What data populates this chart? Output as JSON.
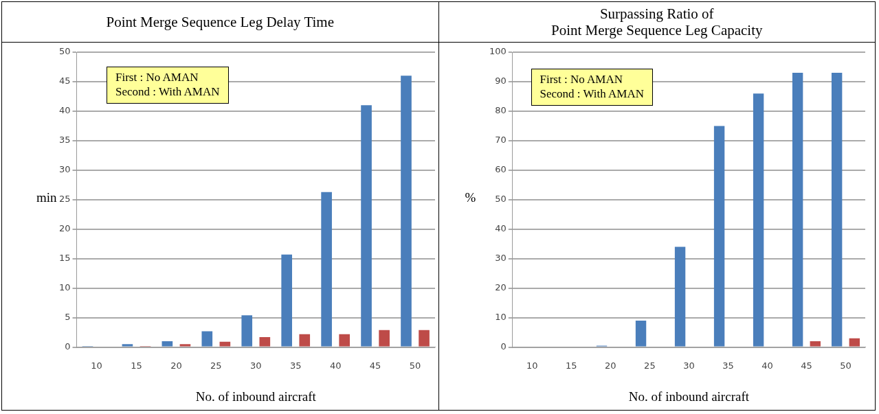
{
  "chart_data": [
    {
      "type": "bar",
      "title": "Point Merge Sequence Leg Delay Time",
      "xlabel": "No. of inbound aircraft",
      "ylabel": "min",
      "categories": [
        "10",
        "15",
        "20",
        "25",
        "30",
        "35",
        "40",
        "45",
        "50"
      ],
      "series": [
        {
          "color": "#4a7ebb",
          "values": [
            0.2,
            0.5,
            1.0,
            2.7,
            5.4,
            15.7,
            26.3,
            41,
            46
          ]
        },
        {
          "color": "#be4b48",
          "values": [
            0,
            0.2,
            0.5,
            0.9,
            1.7,
            2.2,
            2.2,
            2.9,
            2.9
          ]
        }
      ],
      "ylim": [
        0,
        50
      ],
      "yticks": [
        0,
        5,
        10,
        15,
        20,
        25,
        30,
        35,
        40,
        45,
        50
      ],
      "grid": "y",
      "annotations": [
        "First : No AMAN\nSecond : With AMAN"
      ]
    },
    {
      "type": "bar",
      "title": "Surpassing Ratio of\nPoint Merge Sequence Leg Capacity",
      "xlabel": "No. of inbound aircraft",
      "ylabel": "%",
      "categories": [
        "10",
        "15",
        "20",
        "25",
        "30",
        "35",
        "40",
        "45",
        "50"
      ],
      "series": [
        {
          "color": "#4a7ebb",
          "values": [
            0,
            0,
            0.5,
            9,
            34,
            75,
            86,
            93,
            93
          ]
        },
        {
          "color": "#be4b48",
          "values": [
            0,
            0,
            0,
            0,
            0,
            0,
            0,
            2,
            3
          ]
        }
      ],
      "ylim": [
        0,
        100
      ],
      "yticks": [
        0,
        10,
        20,
        30,
        40,
        50,
        60,
        70,
        80,
        90,
        100
      ],
      "grid": "y",
      "annotations": [
        "First : No AMAN\nSecond : With AMAN"
      ]
    }
  ]
}
